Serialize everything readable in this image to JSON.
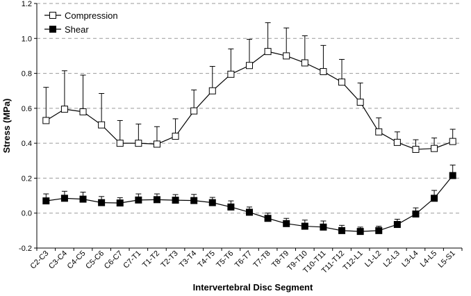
{
  "chart_data": {
    "type": "line",
    "title": "",
    "xlabel": "Intervertebral Disc Segment",
    "ylabel": "Stress (MPa)",
    "ylim": [
      -0.2,
      1.2
    ],
    "yticks": [
      "-0.2",
      "0.0",
      "0.2",
      "0.4",
      "0.6",
      "0.8",
      "1.0",
      "1.2"
    ],
    "grid": "horizontal dashed",
    "legend": "top-left",
    "categories": [
      "C2-C3",
      "C3-C4",
      "C4-C5",
      "C5-C6",
      "C6-C7",
      "C7-T1",
      "T1-T2",
      "T2-T3",
      "T3-T4",
      "T4-T5",
      "T5-T6",
      "T6-T7",
      "T7-T8",
      "T8-T9",
      "T9-T10",
      "T10-T11",
      "T11-T12",
      "T12-L1",
      "L1-L2",
      "L2-L3",
      "L3-L4",
      "L4-L5",
      "L5-S1"
    ],
    "series": [
      {
        "name": "Compression",
        "marker": "open-square",
        "values": [
          0.53,
          0.595,
          0.58,
          0.505,
          0.4,
          0.4,
          0.395,
          0.44,
          0.585,
          0.7,
          0.795,
          0.845,
          0.925,
          0.9,
          0.86,
          0.81,
          0.75,
          0.635,
          0.465,
          0.405,
          0.365,
          0.37,
          0.41
        ],
        "error_plus": [
          0.19,
          0.22,
          0.21,
          0.18,
          0.13,
          0.11,
          0.1,
          0.1,
          0.12,
          0.14,
          0.145,
          0.15,
          0.165,
          0.16,
          0.155,
          0.15,
          0.13,
          0.11,
          0.08,
          0.06,
          0.055,
          0.06,
          0.07
        ]
      },
      {
        "name": "Shear",
        "marker": "filled-square",
        "values": [
          0.07,
          0.085,
          0.08,
          0.06,
          0.058,
          0.075,
          0.077,
          0.074,
          0.072,
          0.06,
          0.035,
          0.005,
          -0.03,
          -0.06,
          -0.075,
          -0.08,
          -0.1,
          -0.105,
          -0.1,
          -0.065,
          -0.005,
          0.085,
          0.215
        ],
        "error_plus": [
          0.04,
          0.04,
          0.04,
          0.035,
          0.03,
          0.035,
          0.033,
          0.032,
          0.035,
          0.03,
          0.035,
          0.03,
          0.03,
          0.03,
          0.035,
          0.035,
          0.03,
          0.025,
          0.025,
          0.03,
          0.035,
          0.045,
          0.06
        ]
      }
    ]
  }
}
